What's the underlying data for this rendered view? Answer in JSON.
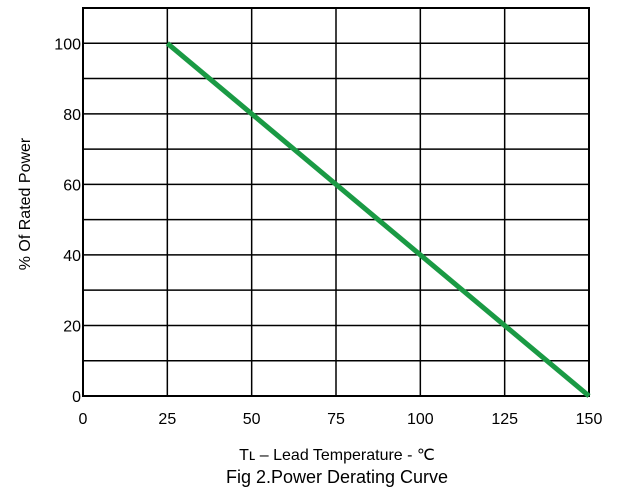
{
  "chart_data": {
    "type": "line",
    "title": "Fig 2.Power Derating Curve",
    "xlabel": "Tʟ – Lead Temperature - ℃",
    "ylabel": "% Of Rated Power",
    "xlim": [
      0,
      150
    ],
    "ylim": [
      0,
      110
    ],
    "x_ticks": [
      "0",
      "25",
      "50",
      "75",
      "100",
      "125",
      "150"
    ],
    "y_ticks": [
      "0",
      "20",
      "40",
      "60",
      "80",
      "100"
    ],
    "grid": true,
    "series": [
      {
        "x": [
          25,
          150
        ],
        "y": [
          100,
          0
        ],
        "color": "#1a9a44"
      }
    ]
  }
}
